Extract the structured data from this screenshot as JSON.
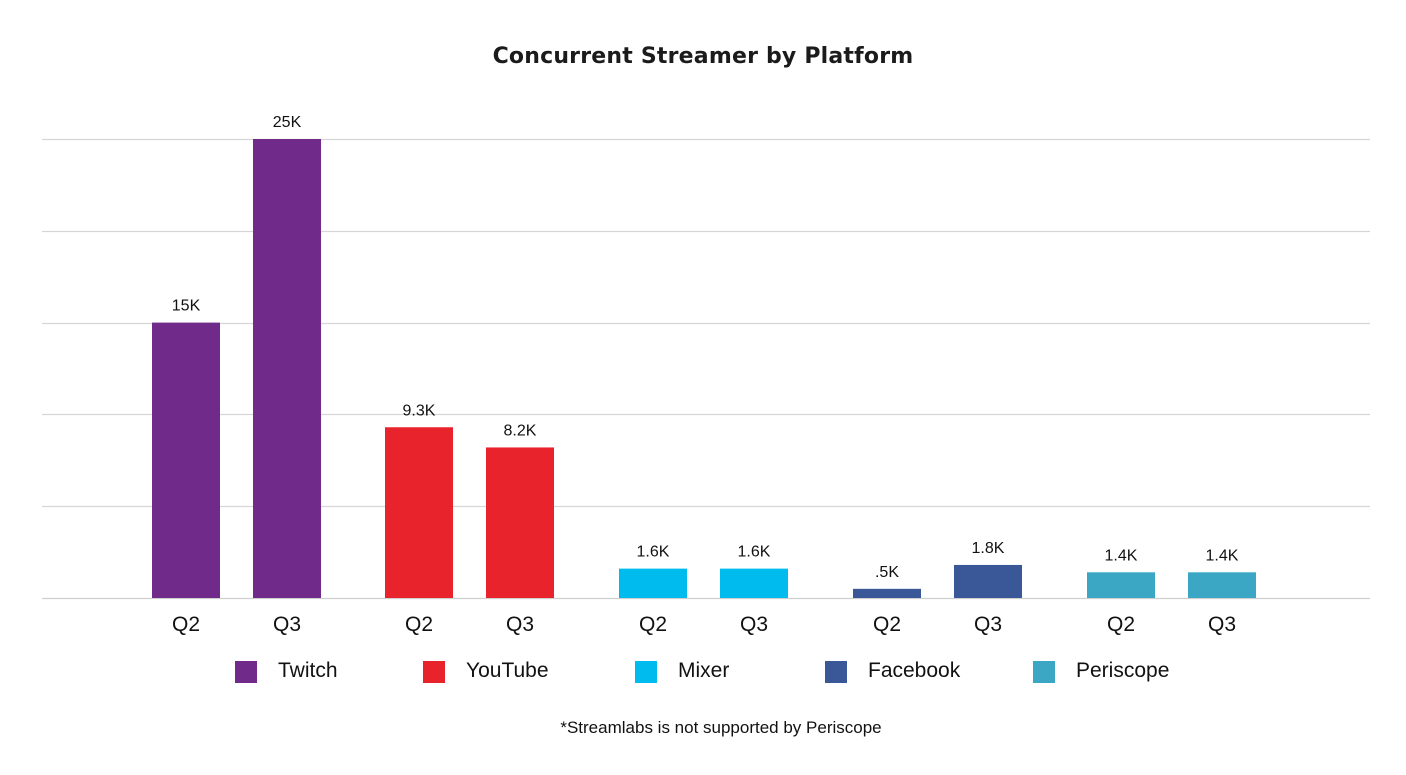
{
  "chart_data": {
    "type": "bar",
    "title": "Concurrent Streamer by Platform",
    "footnote": "*Streamlabs is not supported by Periscope",
    "xlabel": "",
    "ylabel": "",
    "ylim": [
      0,
      30000
    ],
    "grid": true,
    "legend_position": "bottom",
    "groups": [
      {
        "name": "Twitch",
        "color": "#702B8A",
        "bars": [
          {
            "category": "Q2",
            "value": 15000,
            "label": "15K"
          },
          {
            "category": "Q3",
            "value": 25000,
            "label": "25K"
          }
        ]
      },
      {
        "name": "YouTube",
        "color": "#E8232B",
        "bars": [
          {
            "category": "Q2",
            "value": 9300,
            "label": "9.3K"
          },
          {
            "category": "Q3",
            "value": 8200,
            "label": "8.2K"
          }
        ]
      },
      {
        "name": "Mixer",
        "color": "#00BCEE",
        "bars": [
          {
            "category": "Q2",
            "value": 1600,
            "label": "1.6K"
          },
          {
            "category": "Q3",
            "value": 1600,
            "label": "1.6K"
          }
        ]
      },
      {
        "name": "Facebook",
        "color": "#3A5898",
        "bars": [
          {
            "category": "Q2",
            "value": 500,
            "label": ".5K"
          },
          {
            "category": "Q3",
            "value": 1800,
            "label": "1.8K"
          }
        ]
      },
      {
        "name": "Periscope",
        "color": "#3BA7C5",
        "bars": [
          {
            "category": "Q2",
            "value": 1400,
            "label": "1.4K"
          },
          {
            "category": "Q3",
            "value": 1400,
            "label": "1.4K"
          }
        ]
      }
    ],
    "legend": [
      {
        "name": "Twitch",
        "color": "#702B8A"
      },
      {
        "name": "YouTube",
        "color": "#E8232B"
      },
      {
        "name": "Mixer",
        "color": "#00BCEE"
      },
      {
        "name": "Facebook",
        "color": "#3A5898"
      },
      {
        "name": "Periscope",
        "color": "#3BA7C5"
      }
    ]
  }
}
